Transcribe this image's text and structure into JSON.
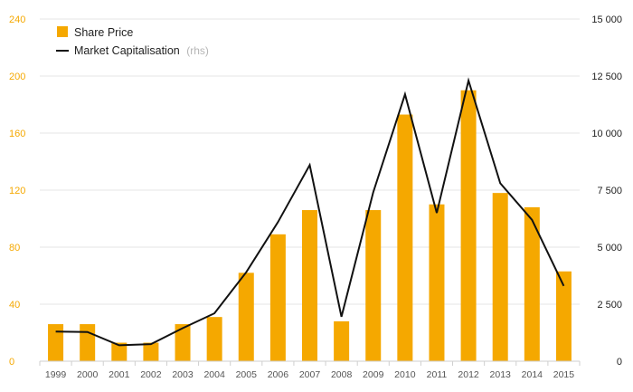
{
  "chart_data": {
    "type": "bar",
    "categories": [
      "1999",
      "2000",
      "2001",
      "2002",
      "2003",
      "2004",
      "2005",
      "2006",
      "2007",
      "2008",
      "2009",
      "2010",
      "2011",
      "2012",
      "2013",
      "2014",
      "2015"
    ],
    "series": [
      {
        "name": "Share Price",
        "type": "bar",
        "axis": "left",
        "color": "#f5a800",
        "values": [
          26,
          26,
          13,
          13,
          26,
          31,
          62,
          89,
          106,
          28,
          106,
          173,
          110,
          190,
          118,
          108,
          63
        ]
      },
      {
        "name": "Market Capitalisation",
        "name_suffix": "(rhs)",
        "type": "line",
        "axis": "right",
        "color": "#111111",
        "values": [
          1300,
          1280,
          700,
          750,
          1450,
          2100,
          3900,
          6100,
          8600,
          1950,
          7400,
          11700,
          6500,
          12300,
          7800,
          6200,
          3300
        ]
      }
    ],
    "y_left": {
      "ylim": [
        0,
        240
      ],
      "ticks": [
        "0",
        "40",
        "80",
        "120",
        "160",
        "200",
        "240"
      ]
    },
    "y_right": {
      "ylim": [
        0,
        15000
      ],
      "ticks": [
        "0",
        "2 500",
        "5 000",
        "7 500",
        "10 000",
        "12 500",
        "15 000"
      ]
    },
    "grid": true,
    "legend": "top-left"
  }
}
